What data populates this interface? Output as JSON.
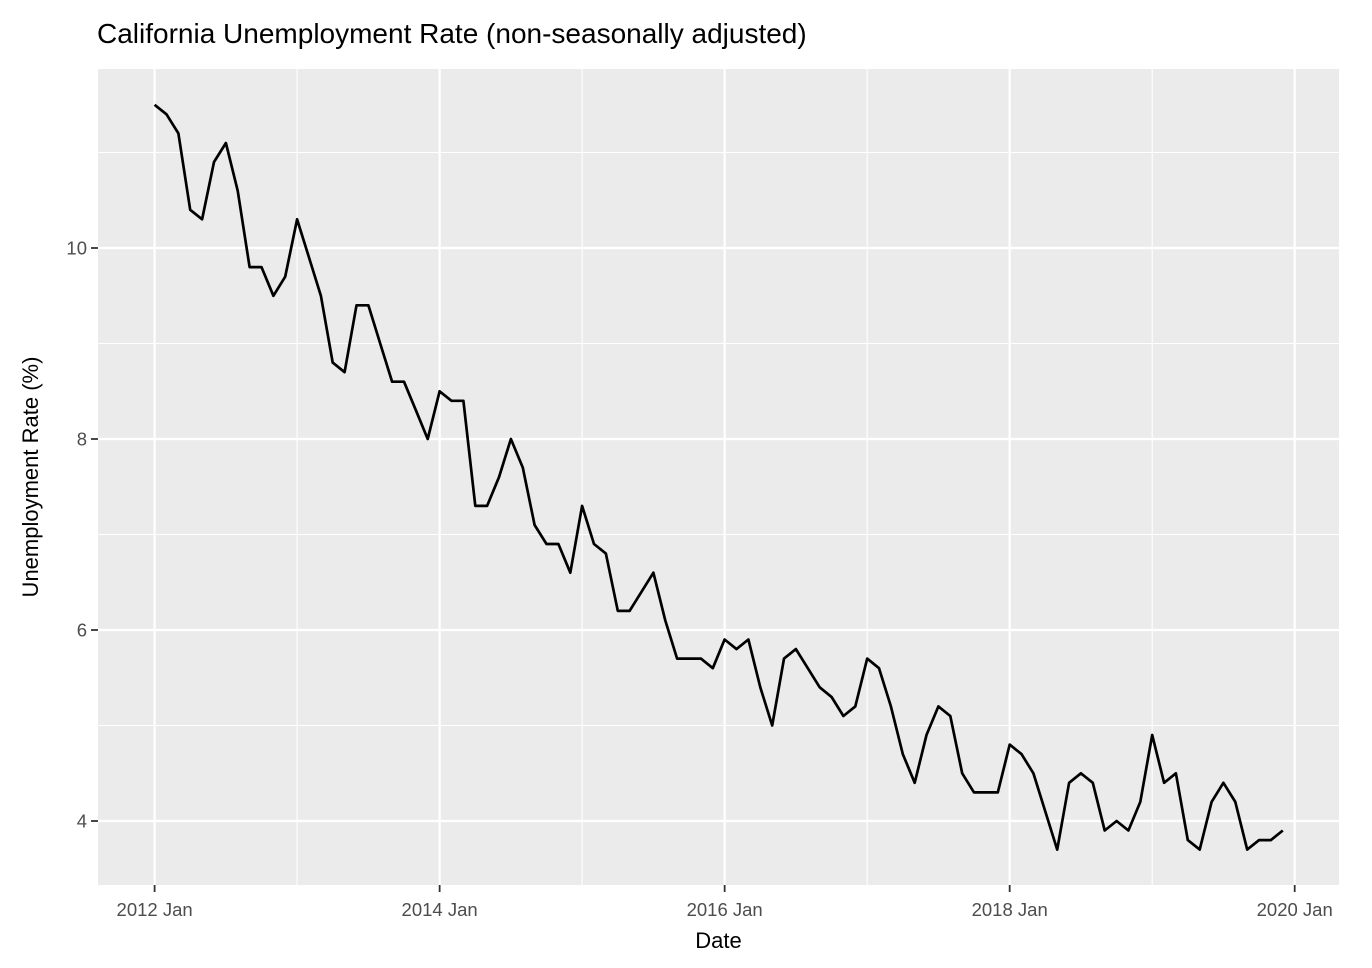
{
  "chart_data": {
    "type": "line",
    "title": "California Unemployment Rate (non-seasonally adjusted)",
    "xlabel": "Date",
    "ylabel": "Unemployment Rate (%)",
    "frequency": "monthly",
    "x_start": "2012-01",
    "x_end": "2019-12",
    "months": [
      "2012-01",
      "2012-02",
      "2012-03",
      "2012-04",
      "2012-05",
      "2012-06",
      "2012-07",
      "2012-08",
      "2012-09",
      "2012-10",
      "2012-11",
      "2012-12",
      "2013-01",
      "2013-02",
      "2013-03",
      "2013-04",
      "2013-05",
      "2013-06",
      "2013-07",
      "2013-08",
      "2013-09",
      "2013-10",
      "2013-11",
      "2013-12",
      "2014-01",
      "2014-02",
      "2014-03",
      "2014-04",
      "2014-05",
      "2014-06",
      "2014-07",
      "2014-08",
      "2014-09",
      "2014-10",
      "2014-11",
      "2014-12",
      "2015-01",
      "2015-02",
      "2015-03",
      "2015-04",
      "2015-05",
      "2015-06",
      "2015-07",
      "2015-08",
      "2015-09",
      "2015-10",
      "2015-11",
      "2015-12",
      "2016-01",
      "2016-02",
      "2016-03",
      "2016-04",
      "2016-05",
      "2016-06",
      "2016-07",
      "2016-08",
      "2016-09",
      "2016-10",
      "2016-11",
      "2016-12",
      "2017-01",
      "2017-02",
      "2017-03",
      "2017-04",
      "2017-05",
      "2017-06",
      "2017-07",
      "2017-08",
      "2017-09",
      "2017-10",
      "2017-11",
      "2017-12",
      "2018-01",
      "2018-02",
      "2018-03",
      "2018-04",
      "2018-05",
      "2018-06",
      "2018-07",
      "2018-08",
      "2018-09",
      "2018-10",
      "2018-11",
      "2018-12",
      "2019-01",
      "2019-02",
      "2019-03",
      "2019-04",
      "2019-05",
      "2019-06",
      "2019-07",
      "2019-08",
      "2019-09",
      "2019-10",
      "2019-11",
      "2019-12"
    ],
    "series": [
      {
        "name": "California unemployment rate (%)",
        "values": [
          11.5,
          11.4,
          11.2,
          10.4,
          10.3,
          10.9,
          11.1,
          10.6,
          9.8,
          9.8,
          9.5,
          9.7,
          10.3,
          9.9,
          9.5,
          8.8,
          8.7,
          9.4,
          9.4,
          9.0,
          8.6,
          8.6,
          8.3,
          8.0,
          8.5,
          8.4,
          8.4,
          7.3,
          7.3,
          7.6,
          8.0,
          7.7,
          7.1,
          6.9,
          6.9,
          6.6,
          7.3,
          6.9,
          6.8,
          6.2,
          6.2,
          6.4,
          6.6,
          6.1,
          5.7,
          5.7,
          5.7,
          5.6,
          5.9,
          5.8,
          5.9,
          5.4,
          5.0,
          5.7,
          5.8,
          5.6,
          5.4,
          5.3,
          5.1,
          5.2,
          5.7,
          5.6,
          5.2,
          4.7,
          4.4,
          4.9,
          5.2,
          5.1,
          4.5,
          4.3,
          4.3,
          4.3,
          4.8,
          4.7,
          4.5,
          4.1,
          3.7,
          4.4,
          4.5,
          4.4,
          3.9,
          4.0,
          3.9,
          4.2,
          4.9,
          4.4,
          4.5,
          3.8,
          3.7,
          4.2,
          4.4,
          4.2,
          3.7,
          3.8,
          3.8,
          3.9
        ]
      }
    ],
    "x_tick_labels": [
      "2012 Jan",
      "2014 Jan",
      "2016 Jan",
      "2018 Jan",
      "2020 Jan"
    ],
    "x_major_month_indices": [
      0,
      24,
      48,
      72,
      96
    ],
    "x_minor_month_indices": [
      12,
      36,
      60,
      84
    ],
    "y_tick_labels": [
      "10",
      "8",
      "6",
      "4"
    ],
    "y_major_gridlines": [
      10,
      8,
      6,
      4
    ],
    "y_minor_gridlines": [
      11,
      9,
      7,
      5
    ],
    "ylim_shown": [
      3.3,
      11.9
    ],
    "grid": true,
    "legend": false,
    "style": {
      "panel_background": "#EBEBEB",
      "gridline_color": "#FFFFFF",
      "line_color": "#000000",
      "tick_mark_color": "#333333",
      "tick_label_color": "#4D4D4D",
      "axis_title_color": "#000000",
      "title_color": "#000000",
      "outer_background": "#FFFFFF"
    }
  }
}
